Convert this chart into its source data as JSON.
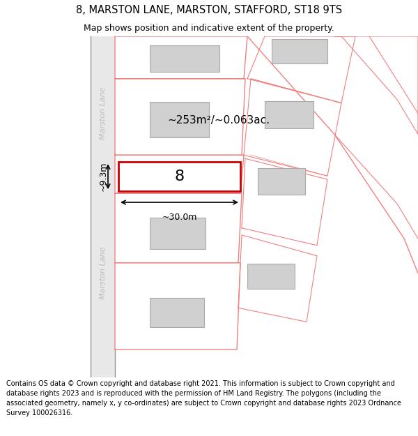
{
  "title": "8, MARSTON LANE, MARSTON, STAFFORD, ST18 9TS",
  "subtitle": "Map shows position and indicative extent of the property.",
  "copyright": "Contains OS data © Crown copyright and database right 2021. This information is subject to Crown copyright and database rights 2023 and is reproduced with the permission of HM Land Registry. The polygons (including the associated geometry, namely x, y co-ordinates) are subject to Crown copyright and database rights 2023 Ordnance Survey 100026316.",
  "area_label": "~253m²/~0.063ac.",
  "width_label": "~30.0m",
  "height_label": "~9.3m",
  "property_number": "8",
  "bg_color": "#ffffff",
  "map_bg": "#ffffff",
  "road_fill": "#e8e8e8",
  "road_border": "#999999",
  "plot_line_color": "#f08080",
  "highlight_color": "#cc0000",
  "building_color": "#d0d0d0",
  "building_outline": "#aaaaaa",
  "road_text_color": "#bbbbbb",
  "road_name": "Marston Lane",
  "title_fontsize": 10.5,
  "subtitle_fontsize": 9,
  "copyright_fontsize": 7.0
}
